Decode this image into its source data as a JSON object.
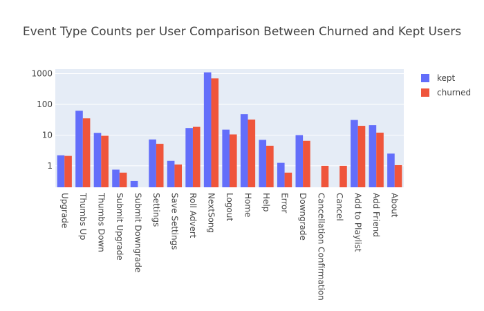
{
  "chart_data": {
    "type": "bar",
    "title": "Event Type Counts per User Comparison Between Churned and Kept Users",
    "xlabel": "",
    "ylabel": "",
    "y_scale": "log",
    "ylim": [
      0.2,
      1400
    ],
    "grid": true,
    "legend_position": "top-right",
    "y_ticks": [
      {
        "value": 1,
        "label": "1"
      },
      {
        "value": 10,
        "label": "10"
      },
      {
        "value": 100,
        "label": "100"
      },
      {
        "value": 1000,
        "label": "1000"
      }
    ],
    "categories": [
      "Upgrade",
      "Thumbs Up",
      "Thumbs Down",
      "Submit Upgrade",
      "Submit Downgrade",
      "Settings",
      "Save Settings",
      "Roll Advert",
      "NextSong",
      "Logout",
      "Home",
      "Help",
      "Error",
      "Downgrade",
      "Cancellation Confirmation",
      "Cancel",
      "Add to Playlist",
      "Add Friend",
      "About"
    ],
    "series": [
      {
        "name": "kept",
        "color": "#636efa",
        "values": [
          2.2,
          62,
          11.8,
          0.75,
          0.32,
          7.2,
          1.45,
          17,
          1100,
          15,
          48,
          7,
          1.25,
          10,
          null,
          null,
          31,
          21,
          2.5
        ]
      },
      {
        "name": "churned",
        "color": "#ef553b",
        "values": [
          2.1,
          35,
          9.5,
          0.6,
          0.18,
          5.2,
          1.1,
          18.5,
          700,
          10.5,
          32,
          4.5,
          0.6,
          6.5,
          1,
          1,
          20,
          12,
          1.05
        ]
      }
    ]
  },
  "colors": {
    "plot_background": "#e5ecf6",
    "grid": "#ffffff",
    "text": "#444444"
  }
}
